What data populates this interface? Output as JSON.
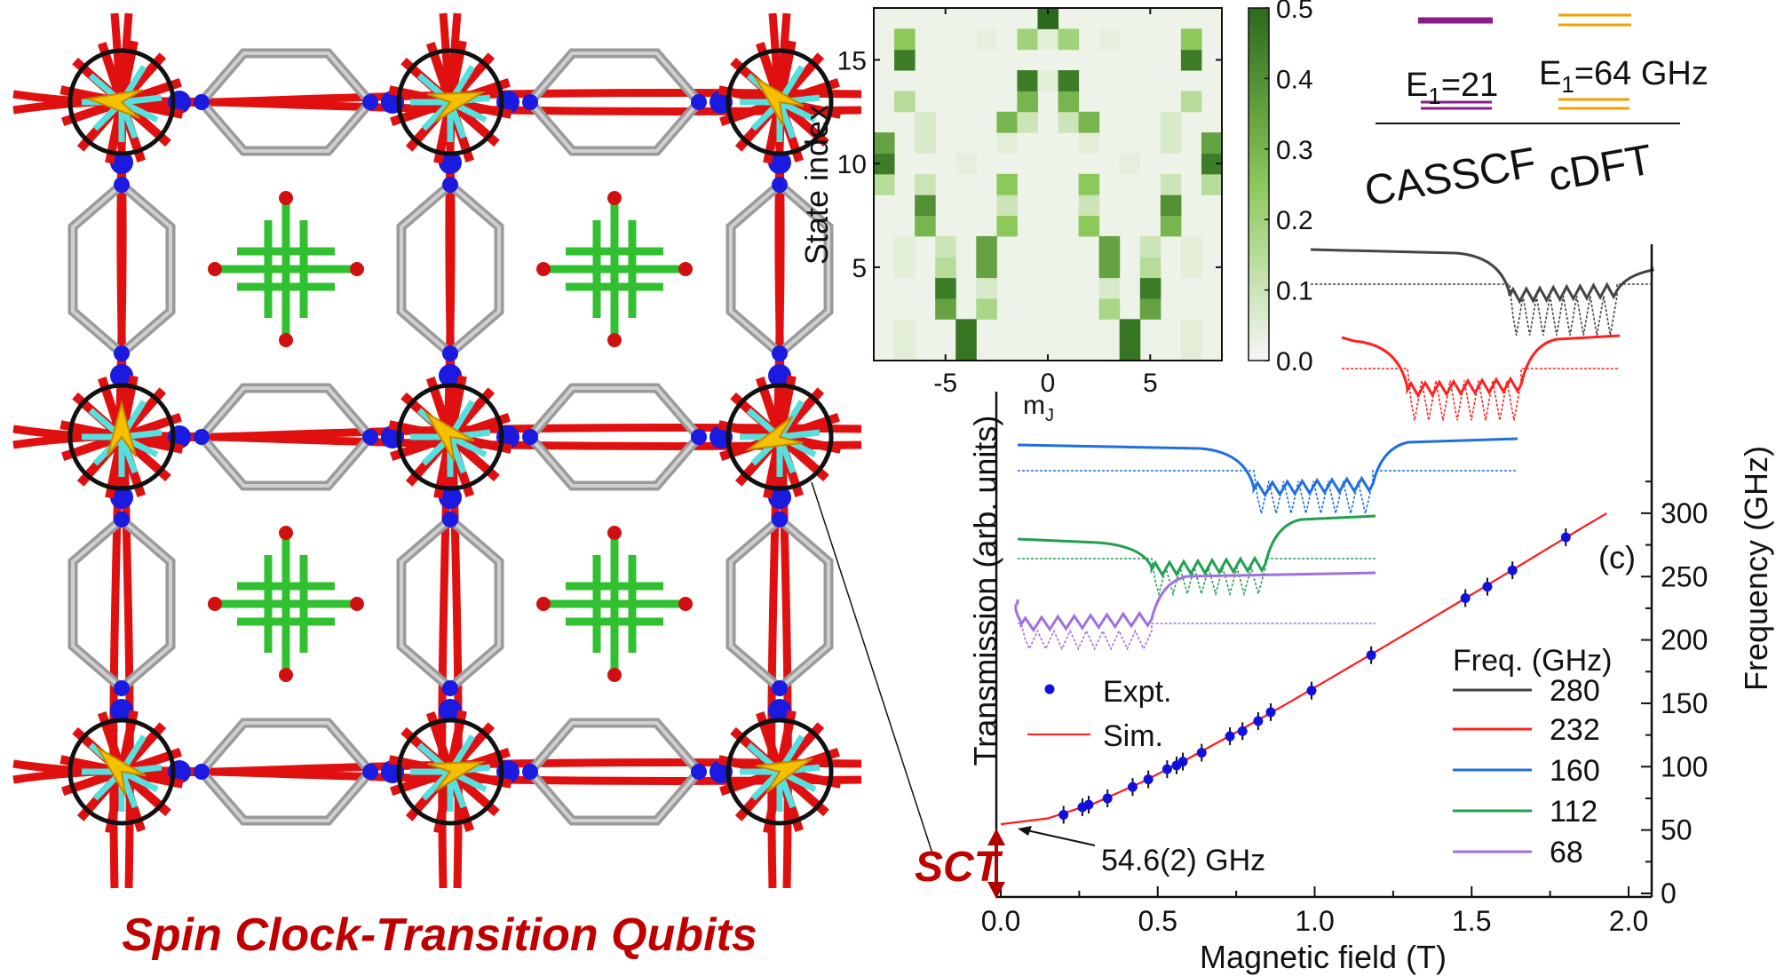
{
  "figure_title": "Spin Clock-Transition Qubits",
  "sct_label": "SCT",
  "panel_label": "(c)",
  "colors": {
    "title": "#c00000",
    "expt": "#1010e0",
    "sim": "#ff1a1a",
    "heat_max": "#2b6a1c"
  },
  "energy_diagram": {
    "casscf_label": "CASSCF",
    "cdft_label": "cDFT",
    "casscf_e1": "E",
    "casscf_e1_sub": "1",
    "casscf_e1_val": "=21",
    "cdft_e1": "E",
    "cdft_e1_sub": "1",
    "cdft_e1_val": "=64 GHz",
    "casscf_color": "#8b1a8b",
    "cdft_color": "#f5a000"
  },
  "chart_data": [
    {
      "type": "heatmap",
      "xlabel": "m",
      "xlabel_sub": "J",
      "ylabel": "State index",
      "xlim": [
        -8.5,
        8.5
      ],
      "ylim": [
        0.5,
        17.5
      ],
      "xticks": [
        "-5",
        "0",
        "5"
      ],
      "xtick_values": [
        -5,
        0,
        5
      ],
      "yticks": [
        "5",
        "10",
        "15"
      ],
      "ytick_values": [
        5,
        10,
        15
      ],
      "colorbar": {
        "range": [
          0,
          0.5
        ],
        "ticks": [
          "0.0",
          "0.1",
          "0.2",
          "0.3",
          "0.4",
          "0.5"
        ]
      },
      "background_value": 0.02,
      "cells": [
        [
          -4,
          1,
          0.47
        ],
        [
          4,
          1,
          0.47
        ],
        [
          -7,
          1,
          0.05
        ],
        [
          7,
          1,
          0.05
        ],
        [
          -4,
          2,
          0.47
        ],
        [
          4,
          2,
          0.47
        ],
        [
          -7,
          2,
          0.05
        ],
        [
          7,
          2,
          0.05
        ],
        [
          -5,
          3,
          0.35
        ],
        [
          -3,
          3,
          0.18
        ],
        [
          3,
          3,
          0.18
        ],
        [
          5,
          3,
          0.35
        ],
        [
          -5,
          4,
          0.45
        ],
        [
          -3,
          4,
          0.07
        ],
        [
          3,
          4,
          0.07
        ],
        [
          5,
          4,
          0.45
        ],
        [
          -5,
          5,
          0.15
        ],
        [
          -3,
          5,
          0.35
        ],
        [
          3,
          5,
          0.35
        ],
        [
          5,
          5,
          0.15
        ],
        [
          -7,
          5,
          0.05
        ],
        [
          7,
          5,
          0.05
        ],
        [
          -5,
          6,
          0.1
        ],
        [
          -3,
          6,
          0.35
        ],
        [
          3,
          6,
          0.35
        ],
        [
          5,
          6,
          0.1
        ],
        [
          -7,
          6,
          0.05
        ],
        [
          7,
          6,
          0.05
        ],
        [
          -6,
          7,
          0.3
        ],
        [
          -2,
          7,
          0.25
        ],
        [
          2,
          7,
          0.25
        ],
        [
          6,
          7,
          0.3
        ],
        [
          -6,
          8,
          0.4
        ],
        [
          -2,
          8,
          0.1
        ],
        [
          2,
          8,
          0.1
        ],
        [
          6,
          8,
          0.4
        ],
        [
          -8,
          9,
          0.15
        ],
        [
          -6,
          9,
          0.1
        ],
        [
          -2,
          9,
          0.25
        ],
        [
          2,
          9,
          0.25
        ],
        [
          6,
          9,
          0.1
        ],
        [
          8,
          9,
          0.15
        ],
        [
          -8,
          10,
          0.45
        ],
        [
          8,
          10,
          0.45
        ],
        [
          -4,
          10,
          0.04
        ],
        [
          4,
          10,
          0.04
        ],
        [
          -8,
          11,
          0.35
        ],
        [
          -6,
          11,
          0.07
        ],
        [
          -2,
          11,
          0.05
        ],
        [
          2,
          11,
          0.05
        ],
        [
          6,
          11,
          0.07
        ],
        [
          8,
          11,
          0.35
        ],
        [
          -6,
          12,
          0.07
        ],
        [
          -2,
          12,
          0.3
        ],
        [
          -1,
          12,
          0.1
        ],
        [
          1,
          12,
          0.1
        ],
        [
          2,
          12,
          0.3
        ],
        [
          6,
          12,
          0.07
        ],
        [
          -7,
          13,
          0.15
        ],
        [
          -1,
          13,
          0.3
        ],
        [
          1,
          13,
          0.3
        ],
        [
          7,
          13,
          0.15
        ],
        [
          -1,
          14,
          0.45
        ],
        [
          0,
          14,
          0.05
        ],
        [
          1,
          14,
          0.45
        ],
        [
          -7,
          15,
          0.45
        ],
        [
          7,
          15,
          0.45
        ],
        [
          -7,
          16,
          0.25
        ],
        [
          -1,
          16,
          0.2
        ],
        [
          0,
          16,
          0.05
        ],
        [
          1,
          16,
          0.2
        ],
        [
          7,
          16,
          0.25
        ],
        [
          -3,
          16,
          0.04
        ],
        [
          3,
          16,
          0.04
        ],
        [
          0,
          17,
          0.5
        ]
      ]
    },
    {
      "type": "scatter",
      "xlabel": "Magnetic field (T)",
      "ylabel": "Frequency (GHz)",
      "left_label": "Transmission (arb. units)",
      "xlim": [
        0,
        2.1
      ],
      "ylim": [
        0,
        330
      ],
      "xticks": [
        "0.0",
        "0.5",
        "1.0",
        "1.5",
        "2.0"
      ],
      "xtick_values": [
        0,
        0.5,
        1.0,
        1.5,
        2.0
      ],
      "yticks": [
        "0",
        "50",
        "100",
        "150",
        "200",
        "250",
        "300"
      ],
      "ytick_values": [
        0,
        50,
        100,
        150,
        200,
        250,
        300
      ],
      "legend": [
        {
          "name": "Expt.",
          "marker": "dot"
        },
        {
          "name": "Sim.",
          "marker": "line"
        }
      ],
      "annotation": {
        "text": "54.6(2) GHz",
        "x": 0,
        "y": 54.6
      },
      "expt": {
        "x": [
          0.2,
          0.26,
          0.28,
          0.34,
          0.42,
          0.47,
          0.53,
          0.56,
          0.58,
          0.64,
          0.73,
          0.77,
          0.82,
          0.86,
          0.99,
          1.18,
          1.48,
          1.55,
          1.63,
          1.8
        ],
        "y": [
          62,
          68,
          70,
          75,
          84,
          90,
          98,
          101,
          104,
          111,
          124,
          128,
          136,
          143,
          160,
          188,
          233,
          242,
          255,
          281
        ]
      },
      "sim": {
        "x": [
          0,
          0.15,
          0.3,
          0.45,
          0.6,
          0.75,
          0.9,
          1.05,
          1.2,
          1.35,
          1.5,
          1.65,
          1.8,
          1.93
        ],
        "y": [
          54.6,
          59.2,
          71.3,
          87.9,
          106.8,
          127.1,
          148.1,
          169.7,
          191.5,
          213.6,
          235.9,
          258.3,
          280.8,
          300
        ]
      },
      "freq_legend_title": "Freq. (GHz)",
      "traces": [
        {
          "freq": "280",
          "color": "#444444"
        },
        {
          "freq": "232",
          "color": "#ff2020"
        },
        {
          "freq": "160",
          "color": "#1f6fe0"
        },
        {
          "freq": "112",
          "color": "#22a050"
        },
        {
          "freq": "68",
          "color": "#a070e0"
        }
      ]
    }
  ]
}
